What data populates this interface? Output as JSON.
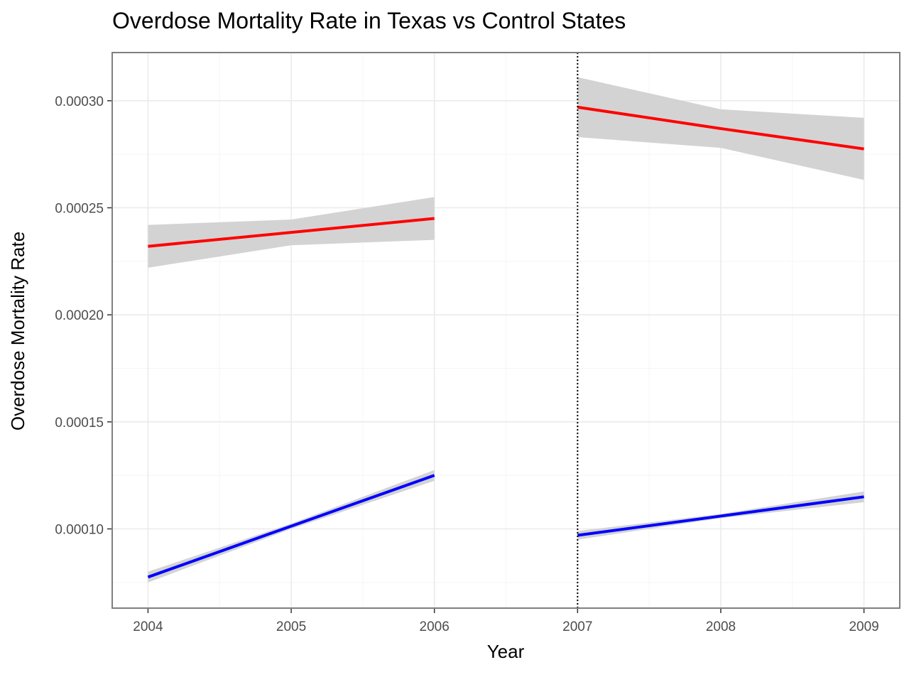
{
  "chart_data": {
    "type": "line",
    "title": "Overdose Mortality Rate in Texas vs Control States",
    "xlabel": "Year",
    "ylabel": "Overdose Mortality Rate",
    "xlim": [
      2003.75,
      2009.25
    ],
    "ylim": [
      6.3e-05,
      0.0003225
    ],
    "x_ticks": [
      2004,
      2005,
      2006,
      2007,
      2008,
      2009
    ],
    "x_tick_labels": [
      "2004",
      "2005",
      "2006",
      "2007",
      "2008",
      "2009"
    ],
    "y_ticks": [
      0.0001,
      0.00015,
      0.0002,
      0.00025,
      0.0003
    ],
    "y_tick_labels": [
      "0.00010",
      "0.00015",
      "0.00020",
      "0.00025",
      "0.00030"
    ],
    "grid": true,
    "vline": {
      "x": 2007,
      "style": "dotted",
      "color": "#000000"
    },
    "series": [
      {
        "color": "#ff0000",
        "segments": [
          {
            "x": [
              2004,
              2005,
              2006
            ],
            "y": [
              0.000232,
              0.0002385,
              0.000245
            ],
            "upper": [
              0.000242,
              0.0002445,
              0.000255
            ],
            "lower": [
              0.000222,
              0.0002325,
              0.000235
            ]
          },
          {
            "x": [
              2007,
              2008,
              2009
            ],
            "y": [
              0.000297,
              0.000287,
              0.0002775
            ],
            "upper": [
              0.000311,
              0.000296,
              0.000292
            ],
            "lower": [
              0.000283,
              0.000278,
              0.000263
            ]
          }
        ]
      },
      {
        "color": "#0000ff",
        "segments": [
          {
            "x": [
              2004,
              2005,
              2006
            ],
            "y": [
              7.75e-05,
              0.0001013,
              0.000125
            ],
            "upper": [
              8e-05,
              0.0001025,
              0.0001275
            ],
            "lower": [
              7.5e-05,
              0.0001,
              0.0001225
            ]
          },
          {
            "x": [
              2007,
              2008,
              2009
            ],
            "y": [
              9.7e-05,
              0.000106,
              0.000115
            ],
            "upper": [
              9.9e-05,
              0.000107,
              0.0001175
            ],
            "lower": [
              9.5e-05,
              0.000105,
              0.0001125
            ]
          }
        ]
      }
    ],
    "colors": {
      "band_fill": "#d3d3d3",
      "grid_major": "#ebebeb",
      "grid_minor": "#f5f5f5",
      "panel_border": "#7f7f7f"
    }
  }
}
